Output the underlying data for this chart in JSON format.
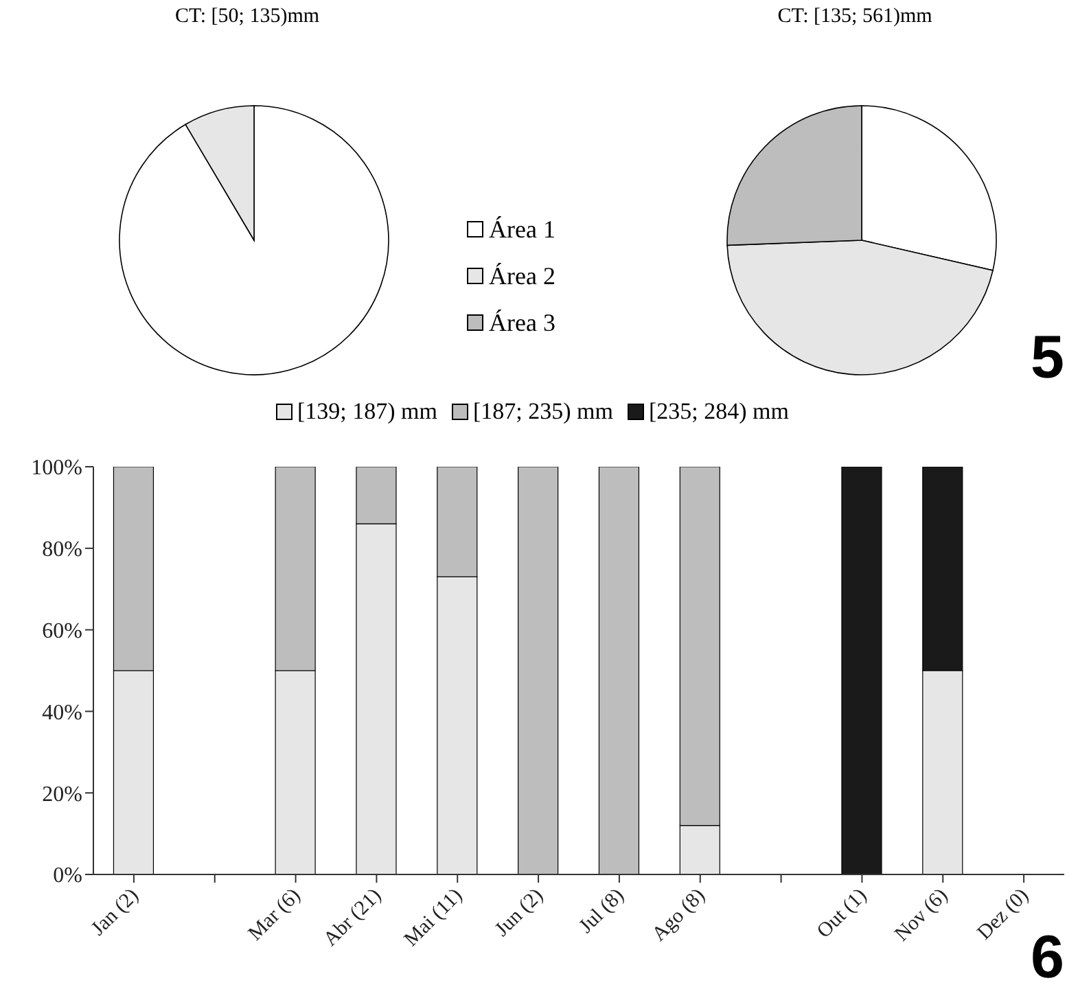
{
  "chart_data": [
    {
      "type": "pie",
      "title": "CT: [50; 135)mm",
      "categories": [
        null,
        null,
        null
      ],
      "values": [
        91.5,
        8.5,
        0
      ],
      "colors": [
        "#ffffff",
        "#e6e6e6",
        "#bdbdbd"
      ],
      "legend": false
    },
    {
      "type": "pie",
      "title": "CT: [135; 561)mm",
      "categories": [
        "Área 1",
        "Área 2",
        "Área 3"
      ],
      "values": [
        28.6,
        45.8,
        25.6
      ],
      "colors": [
        "#ffffff",
        "#e6e6e6",
        "#bdbdbd"
      ],
      "legend": "left",
      "annotations": [
        "5"
      ]
    },
    {
      "type": "bar",
      "stacked": true,
      "categories": [
        "Jan (2)",
        null,
        "Mar (6)",
        "Abr (21)",
        "Mai (11)",
        "Jun (2)",
        "Jul (8)",
        "Ago (8)",
        null,
        "Out (1)",
        "Nov (6)",
        "Dez (0)"
      ],
      "series": [
        {
          "name": "[139; 187) mm",
          "color": "#e6e6e6",
          "values": [
            50,
            null,
            50,
            86,
            73,
            0,
            0,
            12,
            null,
            0,
            50,
            null
          ]
        },
        {
          "name": "[187; 235) mm",
          "color": "#bdbdbd",
          "values": [
            50,
            null,
            50,
            14,
            27,
            100,
            100,
            88,
            null,
            0,
            0,
            null
          ]
        },
        {
          "name": "[235; 284) mm",
          "color": "#1a1a1a",
          "values": [
            0,
            null,
            0,
            0,
            0,
            0,
            0,
            0,
            null,
            100,
            50,
            null
          ]
        }
      ],
      "ylim": [
        0,
        100
      ],
      "yticks": [
        {
          "value": 0,
          "label": "0%"
        },
        {
          "value": 20,
          "label": "20%"
        },
        {
          "value": 40,
          "label": "40%"
        },
        {
          "value": 60,
          "label": "60%"
        },
        {
          "value": 80,
          "label": "80%"
        },
        {
          "value": 100,
          "label": "100%"
        }
      ],
      "grid": false,
      "legend": "top",
      "annotations": [
        "6"
      ]
    }
  ]
}
